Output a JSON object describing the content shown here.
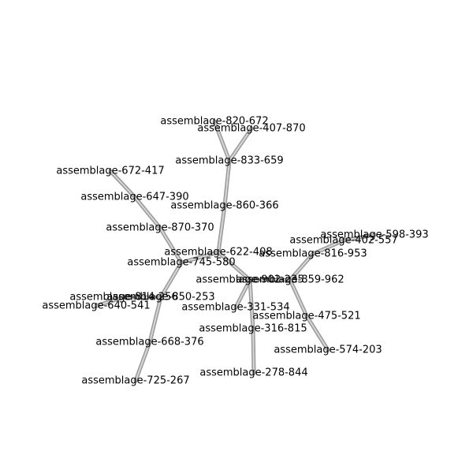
{
  "graph": {
    "nodes": [
      {
        "id": "n820",
        "label": "assemblage-820-672"
      },
      {
        "id": "n407",
        "label": "assemblage-407-870"
      },
      {
        "id": "n833",
        "label": "assemblage-833-659"
      },
      {
        "id": "n860",
        "label": "assemblage-860-366"
      },
      {
        "id": "n622",
        "label": "assemblage-622-408"
      },
      {
        "id": "n672",
        "label": "assemblage-672-417"
      },
      {
        "id": "n647",
        "label": "assemblage-647-390"
      },
      {
        "id": "n870",
        "label": "assemblage-870-370"
      },
      {
        "id": "n745",
        "label": "assemblage-745-580"
      },
      {
        "id": "n814",
        "label": "assemblage-814-256"
      },
      {
        "id": "n850",
        "label": "assemblage-850-253"
      },
      {
        "id": "n640",
        "label": "assemblage-640-541"
      },
      {
        "id": "n668",
        "label": "assemblage-668-376"
      },
      {
        "id": "n725",
        "label": "assemblage-725-267"
      },
      {
        "id": "n902",
        "label": "assemblage-902-235"
      },
      {
        "id": "n859",
        "label": "assemblage-859-962"
      },
      {
        "id": "n331",
        "label": "assemblage-331-534"
      },
      {
        "id": "n316",
        "label": "assemblage-316-815"
      },
      {
        "id": "n278",
        "label": "assemblage-278-844"
      },
      {
        "id": "n816",
        "label": "assemblage-816-953"
      },
      {
        "id": "n402",
        "label": "assemblage-402-557"
      },
      {
        "id": "n598",
        "label": "assemblage-598-393"
      },
      {
        "id": "n475",
        "label": "assemblage-475-521"
      },
      {
        "id": "n574",
        "label": "assemblage-574-203"
      }
    ],
    "edges": [
      [
        "n820",
        "n833"
      ],
      [
        "n407",
        "n833"
      ],
      [
        "n833",
        "n860"
      ],
      [
        "n860",
        "n622"
      ],
      [
        "n622",
        "n745"
      ],
      [
        "n672",
        "n647"
      ],
      [
        "n647",
        "n870"
      ],
      [
        "n870",
        "n745"
      ],
      [
        "n745",
        "n850"
      ],
      [
        "n850",
        "n814"
      ],
      [
        "n814",
        "n640"
      ],
      [
        "n850",
        "n668"
      ],
      [
        "n668",
        "n725"
      ],
      [
        "n622",
        "n902"
      ],
      [
        "n902",
        "n859"
      ],
      [
        "n902",
        "n331"
      ],
      [
        "n902",
        "n316"
      ],
      [
        "n316",
        "n278"
      ],
      [
        "n859",
        "n816"
      ],
      [
        "n816",
        "n402"
      ],
      [
        "n402",
        "n598"
      ],
      [
        "n859",
        "n475"
      ],
      [
        "n475",
        "n574"
      ]
    ]
  }
}
